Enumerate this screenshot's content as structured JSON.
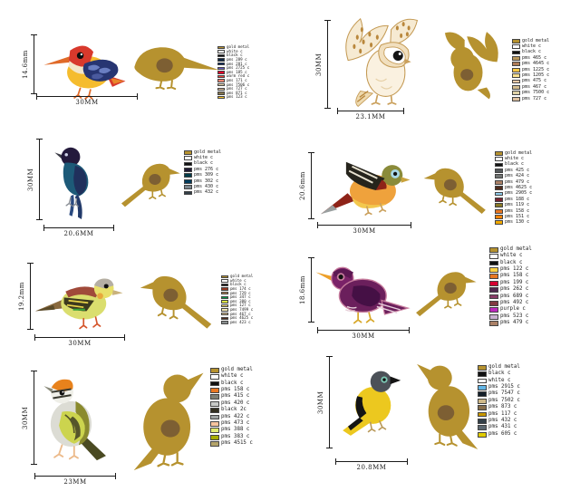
{
  "sheet": {
    "background": "#ffffff"
  },
  "colors": {
    "gold": "#b6922f",
    "gold_spot": "#7d5f33",
    "dim_line": "#1a1a1a"
  },
  "panels": [
    {
      "id": "kingfisher",
      "height_label": "14.6mm",
      "width_label": "30MM",
      "legend": [
        {
          "label": "gold metal",
          "color": "#b6922f"
        },
        {
          "label": "white c",
          "color": "#ffffff"
        },
        {
          "label": "black c",
          "color": "#111111"
        },
        {
          "label": "pms 289 c",
          "color": "#0c2340"
        },
        {
          "label": "pms 281 c",
          "color": "#00205b"
        },
        {
          "label": "pms 2725 c",
          "color": "#685bc7"
        },
        {
          "label": "pms 185 c",
          "color": "#e4002b"
        },
        {
          "label": "warm red c",
          "color": "#f9423a"
        },
        {
          "label": "pms 171 c",
          "color": "#ff8672"
        },
        {
          "label": "pms 7506 c",
          "color": "#efdbb2"
        },
        {
          "label": "pms 727 c",
          "color": "#ddbf9e"
        },
        {
          "label": "pms 871 c",
          "color": "#84754e"
        },
        {
          "label": "pms 123 c",
          "color": "#ffc72c"
        }
      ]
    },
    {
      "id": "barn-owl",
      "height_label": "30MM",
      "width_label": "23.1MM",
      "legend": [
        {
          "label": "gold metal",
          "color": "#b6922f"
        },
        {
          "label": "white c",
          "color": "#ffffff"
        },
        {
          "label": "black c",
          "color": "#111111"
        },
        {
          "label": "pms 465 c",
          "color": "#b9975b"
        },
        {
          "label": "pms 4645 c",
          "color": "#ad7c59"
        },
        {
          "label": "pms 1225 c",
          "color": "#ffc845"
        },
        {
          "label": "pms 1205 c",
          "color": "#f8e08e"
        },
        {
          "label": "pms 475 c",
          "color": "#f2cba9"
        },
        {
          "label": "pms 467 c",
          "color": "#d3bc8d"
        },
        {
          "label": "pms 7500 c",
          "color": "#dfd1a7"
        },
        {
          "label": "pms 727 c",
          "color": "#ddbf9e"
        }
      ]
    },
    {
      "id": "blue-long-tailed-bird",
      "height_label": "30MM",
      "width_label": "20.6MM",
      "legend": [
        {
          "label": "gold metal",
          "color": "#b6922f"
        },
        {
          "label": "white c",
          "color": "#ffffff"
        },
        {
          "label": "black c",
          "color": "#111111"
        },
        {
          "label": "pms 276 c",
          "color": "#221c35"
        },
        {
          "label": "pms 309 c",
          "color": "#003b49"
        },
        {
          "label": "pms 302 c",
          "color": "#003b5c"
        },
        {
          "label": "pms 430 c",
          "color": "#7c878e"
        },
        {
          "label": "pms 432 c",
          "color": "#333f48"
        }
      ]
    },
    {
      "id": "orange-breasted-bird",
      "height_label": "20.6mm",
      "width_label": "30MM",
      "legend": [
        {
          "label": "gold metal",
          "color": "#b6922f"
        },
        {
          "label": "white c",
          "color": "#ffffff"
        },
        {
          "label": "black c",
          "color": "#111111"
        },
        {
          "label": "pms 425 c",
          "color": "#54585a"
        },
        {
          "label": "pms 424 c",
          "color": "#707372"
        },
        {
          "label": "pms 479 c",
          "color": "#aa8066"
        },
        {
          "label": "pms 4625 c",
          "color": "#4f2c1d"
        },
        {
          "label": "pms 2905 c",
          "color": "#8dc8e8"
        },
        {
          "label": "pms 188 c",
          "color": "#76232f"
        },
        {
          "label": "pms 119 c",
          "color": "#897a27"
        },
        {
          "label": "pms 158 c",
          "color": "#e87722"
        },
        {
          "label": "pms 151 c",
          "color": "#ff8200"
        },
        {
          "label": "pms 130 c",
          "color": "#f2a900"
        }
      ]
    },
    {
      "id": "yellow-bunting",
      "height_label": "19.2mm",
      "width_label": "30MM",
      "legend": [
        {
          "label": "gold metal",
          "color": "#b6922f"
        },
        {
          "label": "white c",
          "color": "#ffffff"
        },
        {
          "label": "black c",
          "color": "#111111"
        },
        {
          "label": "pms 174 c",
          "color": "#963821"
        },
        {
          "label": "pms 729 c",
          "color": "#b58150"
        },
        {
          "label": "pms 347 c",
          "color": "#009a44"
        },
        {
          "label": "pms 380 c",
          "color": "#dbe442"
        },
        {
          "label": "pms 127 c",
          "color": "#f3dd6d"
        },
        {
          "label": "pms 7499 c",
          "color": "#f1e6b2"
        },
        {
          "label": "pms 467 c",
          "color": "#d3bc8d"
        },
        {
          "label": "pms 4625 c",
          "color": "#4f2c1d"
        },
        {
          "label": "pms 423 c",
          "color": "#898d8d"
        }
      ]
    },
    {
      "id": "purple-bird",
      "height_label": "18.6mm",
      "width_label": "30MM",
      "legend": [
        {
          "label": "gold metal",
          "color": "#b6922f"
        },
        {
          "label": "white c",
          "color": "#ffffff"
        },
        {
          "label": "black c",
          "color": "#111111"
        },
        {
          "label": "pms 122 c",
          "color": "#fed141"
        },
        {
          "label": "pms 158 c",
          "color": "#e87722"
        },
        {
          "label": "pms 199 c",
          "color": "#d50032"
        },
        {
          "label": "pms 262 c",
          "color": "#51284f"
        },
        {
          "label": "pms 689 c",
          "color": "#893b67"
        },
        {
          "label": "pms 492 c",
          "color": "#823b42"
        },
        {
          "label": "purple c",
          "color": "#bb29bb"
        },
        {
          "label": "pms 523 c",
          "color": "#c9b1d0"
        },
        {
          "label": "pms 479 c",
          "color": "#aa8066"
        }
      ]
    },
    {
      "id": "orange-crowned-warbler",
      "height_label": "30MM",
      "width_label": "23MM",
      "legend": [
        {
          "label": "gold metal",
          "color": "#b6922f"
        },
        {
          "label": "white c",
          "color": "#ffffff"
        },
        {
          "label": "black c",
          "color": "#111111"
        },
        {
          "label": "pms 158 c",
          "color": "#e87722"
        },
        {
          "label": "pms 415 c",
          "color": "#7e7f74"
        },
        {
          "label": "pms 420 c",
          "color": "#c7c9c7"
        },
        {
          "label": "black 2c",
          "color": "#332f21"
        },
        {
          "label": "pms 422 c",
          "color": "#9ea2a2"
        },
        {
          "label": "pms 473 c",
          "color": "#f6c49e"
        },
        {
          "label": "pms 388 c",
          "color": "#e0e96e"
        },
        {
          "label": "pms 383 c",
          "color": "#a8ad00"
        },
        {
          "label": "pms 4515 c",
          "color": "#b3a369"
        }
      ]
    },
    {
      "id": "yellow-oriole",
      "height_label": "30MM",
      "width_label": "20.8MM",
      "legend": [
        {
          "label": "gold metal",
          "color": "#b6922f"
        },
        {
          "label": "black c",
          "color": "#111111"
        },
        {
          "label": "white c",
          "color": "#ffffff"
        },
        {
          "label": "pms 2915 c",
          "color": "#62b5e5"
        },
        {
          "label": "pms 7547 c",
          "color": "#131e29"
        },
        {
          "label": "pms 7502 c",
          "color": "#ceb888"
        },
        {
          "label": "pms 873 c",
          "color": "#866d4b"
        },
        {
          "label": "pms 117 c",
          "color": "#c99700"
        },
        {
          "label": "pms 432 c",
          "color": "#333f48"
        },
        {
          "label": "pms 431 c",
          "color": "#5b6770"
        },
        {
          "label": "pms 605 c",
          "color": "#e0cb00"
        }
      ]
    }
  ]
}
